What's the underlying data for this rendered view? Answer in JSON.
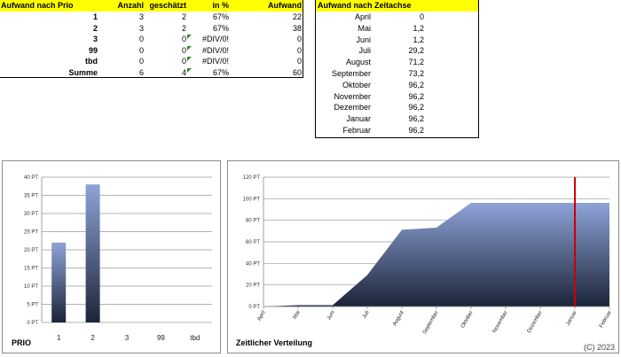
{
  "prio_table": {
    "headers": [
      "Aufwand nach Prio",
      "Anzahl",
      "geschätzt",
      "in %",
      "Aufwand"
    ],
    "rows": [
      {
        "label": "1",
        "anzahl": "3",
        "geschaetzt": "2",
        "pct": "67%",
        "aufwand": "22",
        "flag": false
      },
      {
        "label": "2",
        "anzahl": "3",
        "geschaetzt": "2",
        "pct": "67%",
        "aufwand": "38",
        "flag": false
      },
      {
        "label": "3",
        "anzahl": "0",
        "geschaetzt": "0",
        "pct": "#DIV/0!",
        "aufwand": "0",
        "flag": true
      },
      {
        "label": "99",
        "anzahl": "0",
        "geschaetzt": "0",
        "pct": "#DIV/0!",
        "aufwand": "0",
        "flag": true
      },
      {
        "label": "tbd",
        "anzahl": "0",
        "geschaetzt": "0",
        "pct": "#DIV/0!",
        "aufwand": "0",
        "flag": true
      },
      {
        "label": "Summe",
        "anzahl": "6",
        "geschaetzt": "4",
        "pct": "67%",
        "aufwand": "60",
        "flag": true
      }
    ]
  },
  "zeit_table": {
    "header": "Aufwand nach Zeitachse",
    "rows": [
      {
        "month": "April",
        "value": "0"
      },
      {
        "month": "Mai",
        "value": "1,2"
      },
      {
        "month": "Juni",
        "value": "1,2"
      },
      {
        "month": "Juli",
        "value": "29,2"
      },
      {
        "month": "August",
        "value": "71,2"
      },
      {
        "month": "September",
        "value": "73,2"
      },
      {
        "month": "Oktober",
        "value": "96,2"
      },
      {
        "month": "November",
        "value": "96,2"
      },
      {
        "month": "Dezember",
        "value": "96,2"
      },
      {
        "month": "Januar",
        "value": "96,2"
      },
      {
        "month": "Februar",
        "value": "96,2"
      }
    ]
  },
  "chart_data": [
    {
      "type": "bar",
      "title": "PRIO",
      "categories": [
        "1",
        "2",
        "3",
        "99",
        "tbd"
      ],
      "values": [
        22,
        38,
        0,
        0,
        0
      ],
      "ylim": [
        0,
        40
      ],
      "yticks": [
        "0 PT",
        "5 PT",
        "10 PT",
        "15 PT",
        "20 PT",
        "25 PT",
        "30 PT",
        "35 PT",
        "40 PT"
      ],
      "grid": true,
      "colors": {
        "top": "#8ea3d8",
        "bottom": "#1c2438"
      }
    },
    {
      "type": "area",
      "title": "Zeitlicher Verteilung",
      "categories": [
        "April",
        "Mai",
        "Juni",
        "Juli",
        "August",
        "September",
        "Oktober",
        "November",
        "Dezember",
        "Januar",
        "Februar"
      ],
      "values": [
        0,
        1.2,
        1.2,
        29.2,
        71.2,
        73.2,
        96.2,
        96.2,
        96.2,
        96.2,
        96.2
      ],
      "ylim": [
        0,
        120
      ],
      "yticks": [
        "0 PT",
        "20 PT",
        "40 PT",
        "60 PT",
        "80 PT",
        "100 PT",
        "120 PT"
      ],
      "grid": true,
      "marker_category": "Januar",
      "colors": {
        "top": "#8ea3d8",
        "bottom": "#1c2438",
        "marker": "#cc0000"
      }
    }
  ],
  "copyright": "(C) 2023"
}
